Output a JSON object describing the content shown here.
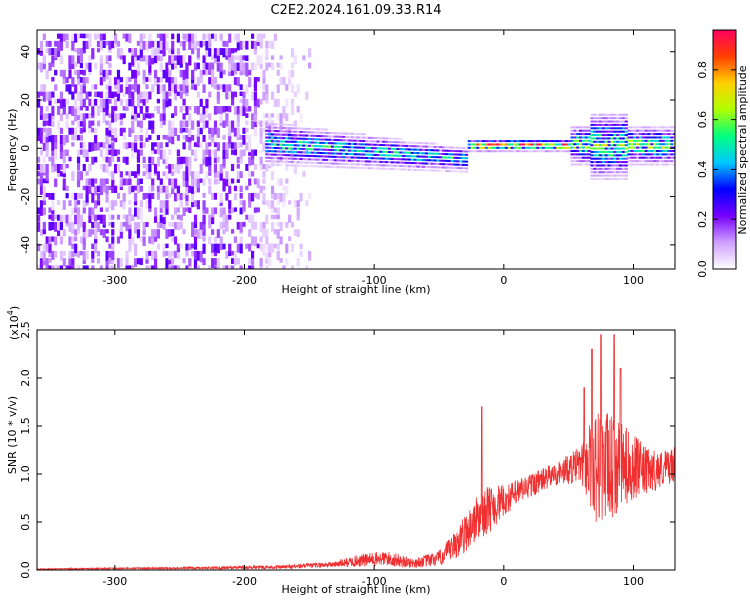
{
  "title": "C2E2.2024.161.09.33.R14",
  "chart_data": [
    {
      "type": "heatmap",
      "xlabel": "Height of straight line (km)",
      "ylabel": "Frequency (Hz)",
      "xlim": [
        -360,
        132
      ],
      "ylim": [
        -50,
        49
      ],
      "xticks": [
        -300,
        -200,
        -100,
        0,
        100
      ],
      "yticks": [
        -40,
        -20,
        0,
        20,
        40
      ],
      "colorbar": {
        "label": "Normalized spectral amplitude",
        "range": [
          0,
          0.96
        ],
        "ticks": [
          0.0,
          0.2,
          0.4,
          0.6,
          0.8
        ],
        "colors": [
          "#ffffff",
          "#cfa0ff",
          "#7700ff",
          "#0000ff",
          "#00c8ff",
          "#00ff80",
          "#b0ff00",
          "#ffd000",
          "#ff4000",
          "#ff0060"
        ]
      },
      "features": [
        {
          "region": "diffuse noise",
          "x": [
            -360,
            -190
          ],
          "freq_spread": 49,
          "amplitude": 0.15
        },
        {
          "region": "fading noise",
          "x": [
            -190,
            -150
          ],
          "freq_spread": 49,
          "amplitude": 0.05
        },
        {
          "region": "band",
          "x": [
            -185,
            -30
          ],
          "center_freq": [
            2,
            -5
          ],
          "amplitude": 0.45
        },
        {
          "region": "narrow line",
          "x": [
            -30,
            50
          ],
          "center_freq": 1,
          "amplitude": 0.9
        },
        {
          "region": "band",
          "x": [
            50,
            132
          ],
          "center_freq": 1,
          "amplitude": 0.55
        }
      ]
    },
    {
      "type": "line",
      "xlabel": "Height of straight line (km)",
      "ylabel": "SNR (10 * v/v)",
      "yexp": "(x10",
      "yexp_power": "4",
      "yexp_close": ")",
      "xlim": [
        -360,
        132
      ],
      "ylim": [
        0,
        2.5
      ],
      "xticks": [
        -300,
        -200,
        -100,
        0,
        100
      ],
      "yticks": [
        0.0,
        0.5,
        1.0,
        1.5,
        2.0,
        2.5
      ],
      "line_color": "#f03030",
      "envelope": {
        "x": [
          -360,
          -250,
          -170,
          -130,
          -110,
          -90,
          -70,
          -50,
          -40,
          -30,
          -20,
          -15,
          -10,
          0,
          20,
          40,
          60,
          70,
          80,
          90,
          100,
          110,
          120,
          132
        ],
        "mid": [
          0.01,
          0.02,
          0.03,
          0.06,
          0.1,
          0.12,
          0.07,
          0.12,
          0.22,
          0.38,
          0.55,
          0.6,
          0.65,
          0.72,
          0.88,
          1.0,
          1.1,
          1.1,
          1.05,
          1.08,
          1.08,
          1.02,
          1.05,
          1.1
        ],
        "amp": [
          0.005,
          0.01,
          0.02,
          0.03,
          0.07,
          0.08,
          0.05,
          0.08,
          0.14,
          0.2,
          0.25,
          0.25,
          0.25,
          0.16,
          0.13,
          0.12,
          0.2,
          0.6,
          0.6,
          0.45,
          0.35,
          0.25,
          0.2,
          0.18
        ]
      },
      "spikes": [
        {
          "x": -17,
          "y": 1.7
        },
        {
          "x": 62,
          "y": 1.9
        },
        {
          "x": 68,
          "y": 2.3
        },
        {
          "x": 75,
          "y": 2.45
        },
        {
          "x": 85,
          "y": 2.45
        },
        {
          "x": 90,
          "y": 2.1
        }
      ]
    }
  ]
}
